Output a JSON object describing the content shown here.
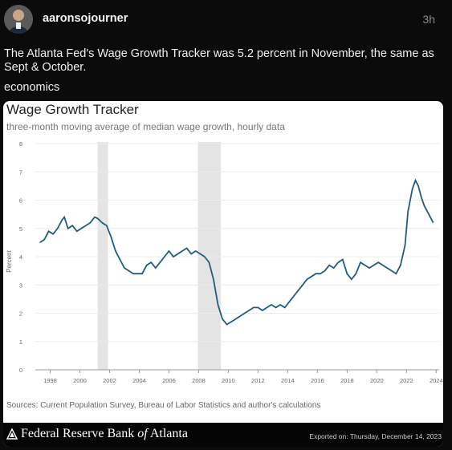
{
  "post": {
    "username": "aaronsojourner",
    "timestamp": "3h",
    "text": "The Atlanta Fed's Wage Growth Tracker was 5.2 percent in November, the same as Sept & October.",
    "tag": "economics"
  },
  "card": {
    "source": "Sources: Current Population Survey, Bureau of Labor Statistics and author's calculations",
    "footer": {
      "brand_pre": "Federal Reserve Bank ",
      "brand_of": "of",
      "brand_post": " Atlanta",
      "exported": "Exported on: Thursday, December 14, 2023"
    }
  },
  "colors": {
    "line": "#1f5d7a",
    "recession": "#e4e4e4",
    "axis_text": "#666666"
  },
  "chart_data": {
    "type": "line",
    "title": "Wage Growth Tracker",
    "subtitle": "three-month moving average of median wage growth, hourly data",
    "xlabel": "",
    "ylabel": "Percent",
    "xlim": [
      1997,
      2024.2
    ],
    "ylim": [
      0,
      8
    ],
    "yticks": [
      "0",
      "1",
      "2",
      "3",
      "4",
      "5",
      "6",
      "7",
      "8"
    ],
    "xticks": [
      "1998",
      "2000",
      "2002",
      "2004",
      "2006",
      "2008",
      "2010",
      "2012",
      "2014",
      "2016",
      "2018",
      "2020",
      "2022",
      "2024"
    ],
    "grid": "horizontal",
    "recession_bands": [
      [
        2001.2,
        2001.9
      ],
      [
        2007.95,
        2009.5
      ]
    ],
    "series": [
      {
        "x": [
          1997.3,
          1997.6,
          1997.9,
          1998.2,
          1998.5,
          1998.8,
          1998.95,
          1999.2,
          1999.5,
          1999.8,
          2000.1,
          2000.4,
          2000.7,
          2001.0,
          2001.2,
          2001.5,
          2001.8,
          2002.1,
          2002.4,
          2002.7,
          2003.0,
          2003.3,
          2003.6,
          2003.9,
          2004.2,
          2004.5,
          2004.8,
          2005.1,
          2005.4,
          2005.7,
          2006.0,
          2006.3,
          2006.6,
          2006.9,
          2007.2,
          2007.5,
          2007.8,
          2008.1,
          2008.4,
          2008.7,
          2009.0,
          2009.3,
          2009.6,
          2009.9,
          2010.2,
          2010.5,
          2010.8,
          2011.1,
          2011.4,
          2011.7,
          2012.0,
          2012.3,
          2012.6,
          2012.9,
          2013.2,
          2013.5,
          2013.8,
          2014.1,
          2014.4,
          2014.7,
          2015.0,
          2015.3,
          2015.6,
          2015.9,
          2016.2,
          2016.5,
          2016.8,
          2017.1,
          2017.4,
          2017.7,
          2018.0,
          2018.3,
          2018.6,
          2018.9,
          2019.2,
          2019.5,
          2019.8,
          2020.1,
          2020.4,
          2020.7,
          2021.0,
          2021.3,
          2021.6,
          2021.9,
          2022.1,
          2022.4,
          2022.6,
          2022.8,
          2023.0,
          2023.2,
          2023.5,
          2023.8
        ],
        "values": [
          4.5,
          4.6,
          4.9,
          4.8,
          5.0,
          5.3,
          5.4,
          5.0,
          5.1,
          4.9,
          5.0,
          5.1,
          5.2,
          5.4,
          5.35,
          5.2,
          5.1,
          4.7,
          4.2,
          3.9,
          3.6,
          3.5,
          3.4,
          3.4,
          3.4,
          3.7,
          3.8,
          3.6,
          3.8,
          4.0,
          4.2,
          4.0,
          4.1,
          4.2,
          4.3,
          4.1,
          4.2,
          4.1,
          4.0,
          3.8,
          3.2,
          2.3,
          1.8,
          1.6,
          1.7,
          1.8,
          1.9,
          2.0,
          2.1,
          2.2,
          2.2,
          2.1,
          2.2,
          2.3,
          2.2,
          2.3,
          2.2,
          2.4,
          2.6,
          2.8,
          3.0,
          3.2,
          3.3,
          3.4,
          3.4,
          3.5,
          3.7,
          3.6,
          3.8,
          3.9,
          3.4,
          3.2,
          3.4,
          3.8,
          3.7,
          3.6,
          3.7,
          3.8,
          3.7,
          3.6,
          3.5,
          3.4,
          3.7,
          4.4,
          5.6,
          6.4,
          6.7,
          6.5,
          6.1,
          5.8,
          5.5,
          5.2
        ]
      }
    ]
  }
}
